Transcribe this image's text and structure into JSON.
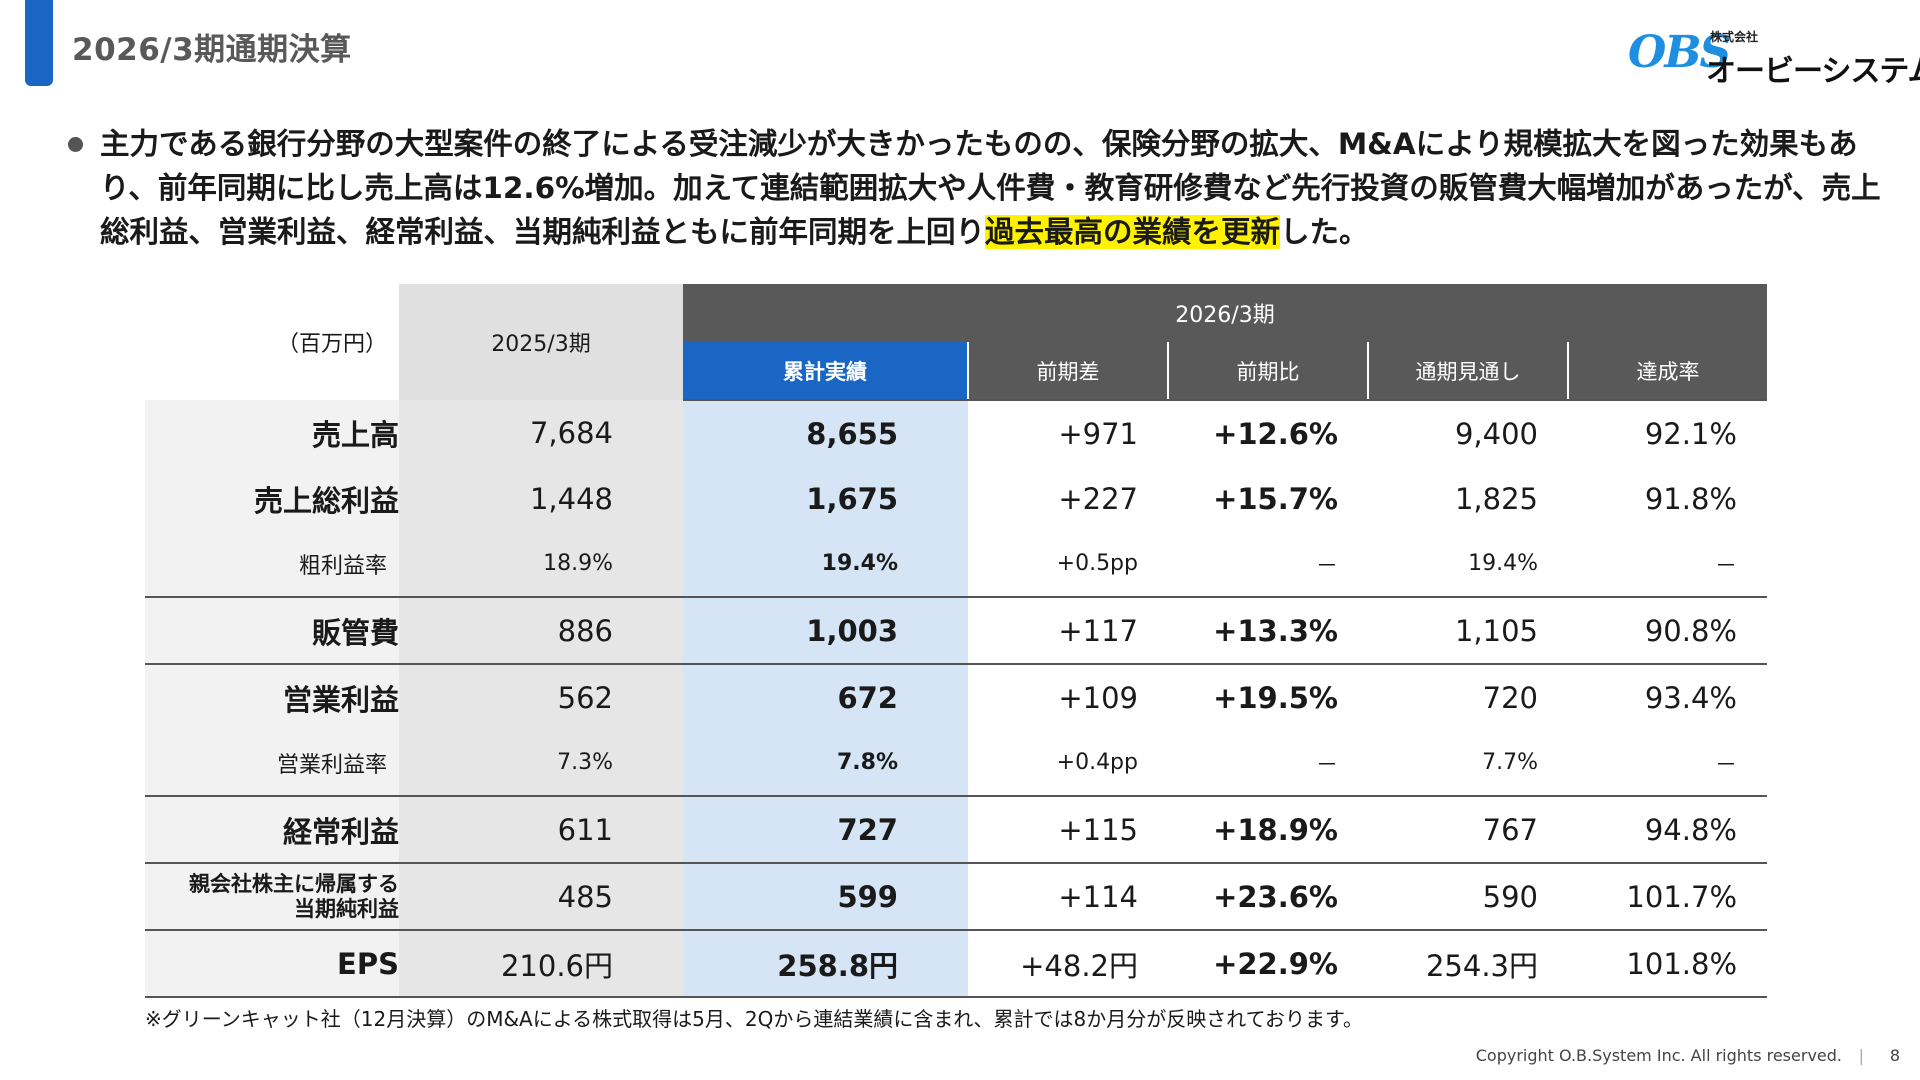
{
  "header": {
    "title": "2026/3期通期決算"
  },
  "logo": {
    "mark": "OBS",
    "kabushiki": "株式会社",
    "name": "オービーシステム"
  },
  "summary": {
    "part1": "主力である銀行分野の大型案件の終了による受注減少が大きかったものの、保険分野の拡大、M&Aにより規模拡大を図った効果もあり、前年同期に比し売上高は12.6%増加。加えて連結範囲拡大や人件費・教育研修費など先行投資の販管費大幅増加があったが、売上総利益、営業利益、経常利益、当期純利益ともに前年同期を上回り",
    "highlight": "過去最高の業績を更新",
    "part2": "した。"
  },
  "table": {
    "unit": "（百万円）",
    "col_2025": "2025/3期",
    "col_2026": "2026/3期",
    "sub_cols": [
      "累計実績",
      "前期差",
      "前期比",
      "通期見通し",
      "達成率"
    ],
    "rows": [
      {
        "label": "売上高",
        "v2025": "7,684",
        "cum": "8,655",
        "diff": "+971",
        "ratio": "+12.6%",
        "forecast": "9,400",
        "achieve": "92.1%"
      },
      {
        "label": "売上総利益",
        "v2025": "1,448",
        "cum": "1,675",
        "diff": "+227",
        "ratio": "+15.7%",
        "forecast": "1,825",
        "achieve": "91.8%"
      },
      {
        "label": "粗利益率",
        "v2025": "18.9%",
        "cum": "19.4%",
        "diff": "+0.5pp",
        "ratio": "－",
        "forecast": "19.4%",
        "achieve": "－"
      },
      {
        "label": "販管費",
        "v2025": "886",
        "cum": "1,003",
        "diff": "+117",
        "ratio": "+13.3%",
        "forecast": "1,105",
        "achieve": "90.8%"
      },
      {
        "label": "営業利益",
        "v2025": "562",
        "cum": "672",
        "diff": "+109",
        "ratio": "+19.5%",
        "forecast": "720",
        "achieve": "93.4%"
      },
      {
        "label": "営業利益率",
        "v2025": "7.3%",
        "cum": "7.8%",
        "diff": "+0.4pp",
        "ratio": "－",
        "forecast": "7.7%",
        "achieve": "－"
      },
      {
        "label": "経常利益",
        "v2025": "611",
        "cum": "727",
        "diff": "+115",
        "ratio": "+18.9%",
        "forecast": "767",
        "achieve": "94.8%"
      },
      {
        "label_line1": "親会社株主に帰属する",
        "label_line2": "当期純利益",
        "v2025": "485",
        "cum": "599",
        "diff": "+114",
        "ratio": "+23.6%",
        "forecast": "590",
        "achieve": "101.7%"
      },
      {
        "label": "EPS",
        "v2025": "210.6円",
        "cum": "258.8円",
        "diff": "+48.2円",
        "ratio": "+22.9%",
        "forecast": "254.3円",
        "achieve": "101.8%"
      }
    ]
  },
  "note": "※グリーンキャット社（12月決算）のM&Aによる株式取得は5月、2Qから連結業績に含まれ、累計では8か月分が反映されております。",
  "footer": {
    "copyright": "Copyright O.B.System Inc. All rights reserved.",
    "separator": "|",
    "page": "8"
  }
}
